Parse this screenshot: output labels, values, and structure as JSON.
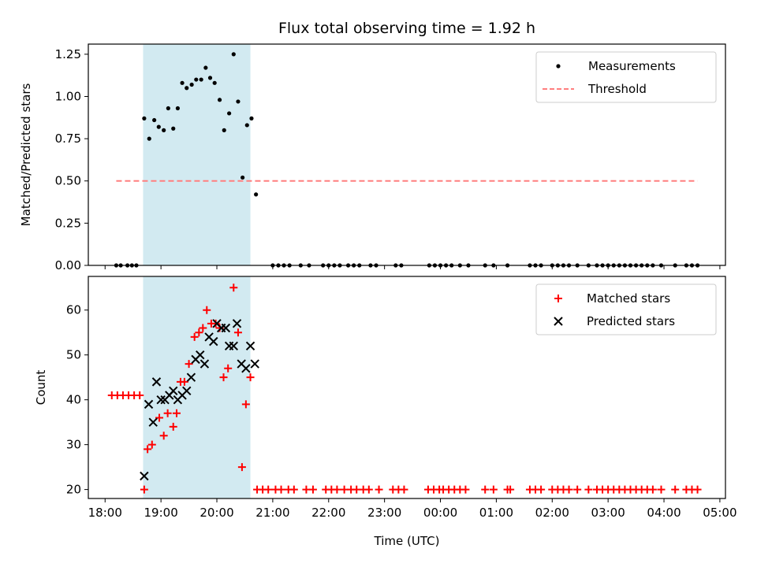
{
  "chart_data": {
    "title": "Flux total observing time = 1.92 h",
    "xlabel": "Time (UTC)",
    "x_unit": "hours since 18:00",
    "xlim": [
      -0.3,
      11.1
    ],
    "x_ticks": [
      {
        "value": 0,
        "label": "18:00"
      },
      {
        "value": 1,
        "label": "19:00"
      },
      {
        "value": 2,
        "label": "20:00"
      },
      {
        "value": 3,
        "label": "21:00"
      },
      {
        "value": 4,
        "label": "22:00"
      },
      {
        "value": 5,
        "label": "23:00"
      },
      {
        "value": 6,
        "label": "00:00"
      },
      {
        "value": 7,
        "label": "01:00"
      },
      {
        "value": 8,
        "label": "02:00"
      },
      {
        "value": 9,
        "label": "03:00"
      },
      {
        "value": 10,
        "label": "04:00"
      },
      {
        "value": 11,
        "label": "05:00"
      }
    ],
    "shaded_interval": [
      0.68,
      2.6
    ],
    "shade_color": "#add8e6",
    "panels": [
      {
        "type": "scatter",
        "ylabel": "Matched/Predicted stars",
        "ylim": [
          0,
          1.31
        ],
        "y_ticks": [
          0.0,
          0.25,
          0.5,
          0.75,
          1.0,
          1.25
        ],
        "y_tick_labels": [
          "0.00",
          "0.25",
          "0.50",
          "0.75",
          "1.00",
          "1.25"
        ],
        "legend": {
          "position": "top-right",
          "entries": [
            "Measurements",
            "Threshold"
          ]
        },
        "series": [
          {
            "name": "Measurements",
            "marker": "dot",
            "color": "#000000",
            "points": [
              [
                0.2,
                0
              ],
              [
                0.28,
                0
              ],
              [
                0.4,
                0
              ],
              [
                0.48,
                0
              ],
              [
                0.56,
                0
              ],
              [
                0.7,
                0.87
              ],
              [
                0.79,
                0.75
              ],
              [
                0.88,
                0.86
              ],
              [
                0.96,
                0.82
              ],
              [
                1.05,
                0.8
              ],
              [
                1.13,
                0.93
              ],
              [
                1.22,
                0.81
              ],
              [
                1.3,
                0.93
              ],
              [
                1.38,
                1.08
              ],
              [
                1.46,
                1.05
              ],
              [
                1.55,
                1.07
              ],
              [
                1.63,
                1.1
              ],
              [
                1.72,
                1.1
              ],
              [
                1.8,
                1.17
              ],
              [
                1.88,
                1.11
              ],
              [
                1.96,
                1.08
              ],
              [
                2.05,
                0.98
              ],
              [
                2.13,
                0.8
              ],
              [
                2.22,
                0.9
              ],
              [
                2.3,
                1.25
              ],
              [
                2.38,
                0.97
              ],
              [
                2.46,
                0.52
              ],
              [
                2.54,
                0.83
              ],
              [
                2.62,
                0.87
              ],
              [
                2.7,
                0.42
              ],
              [
                3.0,
                0
              ],
              [
                3.1,
                0
              ],
              [
                3.2,
                0
              ],
              [
                3.3,
                0
              ],
              [
                3.5,
                0
              ],
              [
                3.65,
                0
              ],
              [
                3.9,
                0
              ],
              [
                4.0,
                0
              ],
              [
                4.1,
                0
              ],
              [
                4.2,
                0
              ],
              [
                4.35,
                0
              ],
              [
                4.45,
                0
              ],
              [
                4.55,
                0
              ],
              [
                4.75,
                0
              ],
              [
                4.85,
                0
              ],
              [
                5.2,
                0
              ],
              [
                5.3,
                0
              ],
              [
                5.8,
                0
              ],
              [
                5.9,
                0
              ],
              [
                6.0,
                0
              ],
              [
                6.1,
                0
              ],
              [
                6.2,
                0
              ],
              [
                6.35,
                0
              ],
              [
                6.5,
                0
              ],
              [
                6.8,
                0
              ],
              [
                6.95,
                0
              ],
              [
                7.2,
                0
              ],
              [
                7.6,
                0
              ],
              [
                7.7,
                0
              ],
              [
                7.8,
                0
              ],
              [
                8.0,
                0
              ],
              [
                8.1,
                0
              ],
              [
                8.2,
                0
              ],
              [
                8.3,
                0
              ],
              [
                8.45,
                0
              ],
              [
                8.65,
                0
              ],
              [
                8.8,
                0
              ],
              [
                8.9,
                0
              ],
              [
                9.0,
                0
              ],
              [
                9.1,
                0
              ],
              [
                9.2,
                0
              ],
              [
                9.3,
                0
              ],
              [
                9.4,
                0
              ],
              [
                9.5,
                0
              ],
              [
                9.6,
                0
              ],
              [
                9.7,
                0
              ],
              [
                9.8,
                0
              ],
              [
                9.95,
                0
              ],
              [
                10.2,
                0
              ],
              [
                10.4,
                0
              ],
              [
                10.5,
                0
              ],
              [
                10.6,
                0
              ]
            ]
          },
          {
            "name": "Threshold",
            "type": "line",
            "style": "dashed",
            "color": "#ff7f7f",
            "points": [
              [
                0.2,
                0.5
              ],
              [
                10.6,
                0.5
              ]
            ]
          }
        ]
      },
      {
        "type": "scatter",
        "ylabel": "Count",
        "ylim": [
          18,
          67.5
        ],
        "y_ticks": [
          20,
          30,
          40,
          50,
          60
        ],
        "y_tick_labels": [
          "20",
          "30",
          "40",
          "50",
          "60"
        ],
        "legend": {
          "position": "top-right",
          "entries": [
            "Matched stars",
            "Predicted stars"
          ]
        },
        "series": [
          {
            "name": "Matched stars",
            "marker": "plus",
            "color": "#ff0000",
            "points": [
              [
                0.12,
                41
              ],
              [
                0.22,
                41
              ],
              [
                0.32,
                41
              ],
              [
                0.42,
                41
              ],
              [
                0.52,
                41
              ],
              [
                0.62,
                41
              ],
              [
                0.7,
                20
              ],
              [
                0.76,
                29
              ],
              [
                0.84,
                30
              ],
              [
                0.97,
                36
              ],
              [
                1.05,
                32
              ],
              [
                1.12,
                37
              ],
              [
                1.22,
                34
              ],
              [
                1.28,
                37
              ],
              [
                1.35,
                44
              ],
              [
                1.42,
                44
              ],
              [
                1.5,
                48
              ],
              [
                1.6,
                54
              ],
              [
                1.68,
                55
              ],
              [
                1.75,
                56
              ],
              [
                1.82,
                60
              ],
              [
                1.9,
                57
              ],
              [
                1.98,
                57
              ],
              [
                2.05,
                56
              ],
              [
                2.12,
                45
              ],
              [
                2.2,
                47
              ],
              [
                2.3,
                65
              ],
              [
                2.38,
                55
              ],
              [
                2.45,
                25
              ],
              [
                2.52,
                39
              ],
              [
                2.6,
                45
              ],
              [
                2.72,
                20
              ],
              [
                2.82,
                20
              ],
              [
                2.92,
                20
              ],
              [
                3.05,
                20
              ],
              [
                3.15,
                20
              ],
              [
                3.28,
                20
              ],
              [
                3.38,
                20
              ],
              [
                3.6,
                20
              ],
              [
                3.72,
                20
              ],
              [
                3.95,
                20
              ],
              [
                4.05,
                20
              ],
              [
                4.15,
                20
              ],
              [
                4.28,
                20
              ],
              [
                4.4,
                20
              ],
              [
                4.5,
                20
              ],
              [
                4.62,
                20
              ],
              [
                4.72,
                20
              ],
              [
                4.9,
                20
              ],
              [
                5.15,
                20
              ],
              [
                5.25,
                20
              ],
              [
                5.35,
                20
              ],
              [
                5.78,
                20
              ],
              [
                5.88,
                20
              ],
              [
                5.98,
                20
              ],
              [
                6.05,
                20
              ],
              [
                6.15,
                20
              ],
              [
                6.25,
                20
              ],
              [
                6.35,
                20
              ],
              [
                6.45,
                20
              ],
              [
                6.8,
                20
              ],
              [
                6.95,
                20
              ],
              [
                7.2,
                20
              ],
              [
                7.25,
                20
              ],
              [
                7.6,
                20
              ],
              [
                7.7,
                20
              ],
              [
                7.8,
                20
              ],
              [
                8.0,
                20
              ],
              [
                8.1,
                20
              ],
              [
                8.2,
                20
              ],
              [
                8.3,
                20
              ],
              [
                8.45,
                20
              ],
              [
                8.65,
                20
              ],
              [
                8.8,
                20
              ],
              [
                8.9,
                20
              ],
              [
                9.0,
                20
              ],
              [
                9.1,
                20
              ],
              [
                9.2,
                20
              ],
              [
                9.3,
                20
              ],
              [
                9.4,
                20
              ],
              [
                9.5,
                20
              ],
              [
                9.6,
                20
              ],
              [
                9.7,
                20
              ],
              [
                9.8,
                20
              ],
              [
                9.95,
                20
              ],
              [
                10.2,
                20
              ],
              [
                10.4,
                20
              ],
              [
                10.5,
                20
              ],
              [
                10.6,
                20
              ]
            ]
          },
          {
            "name": "Predicted stars",
            "marker": "x",
            "color": "#000000",
            "points": [
              [
                0.7,
                23
              ],
              [
                0.78,
                39
              ],
              [
                0.86,
                35
              ],
              [
                0.92,
                44
              ],
              [
                1.0,
                40
              ],
              [
                1.07,
                40
              ],
              [
                1.15,
                41
              ],
              [
                1.22,
                42
              ],
              [
                1.3,
                40
              ],
              [
                1.38,
                41
              ],
              [
                1.46,
                42
              ],
              [
                1.54,
                45
              ],
              [
                1.62,
                49
              ],
              [
                1.7,
                50
              ],
              [
                1.78,
                48
              ],
              [
                1.86,
                54
              ],
              [
                1.94,
                53
              ],
              [
                2.0,
                57
              ],
              [
                2.08,
                56
              ],
              [
                2.16,
                56
              ],
              [
                2.22,
                52
              ],
              [
                2.3,
                52
              ],
              [
                2.36,
                57
              ],
              [
                2.44,
                48
              ],
              [
                2.52,
                47
              ],
              [
                2.6,
                52
              ],
              [
                2.68,
                48
              ]
            ]
          }
        ]
      }
    ]
  }
}
